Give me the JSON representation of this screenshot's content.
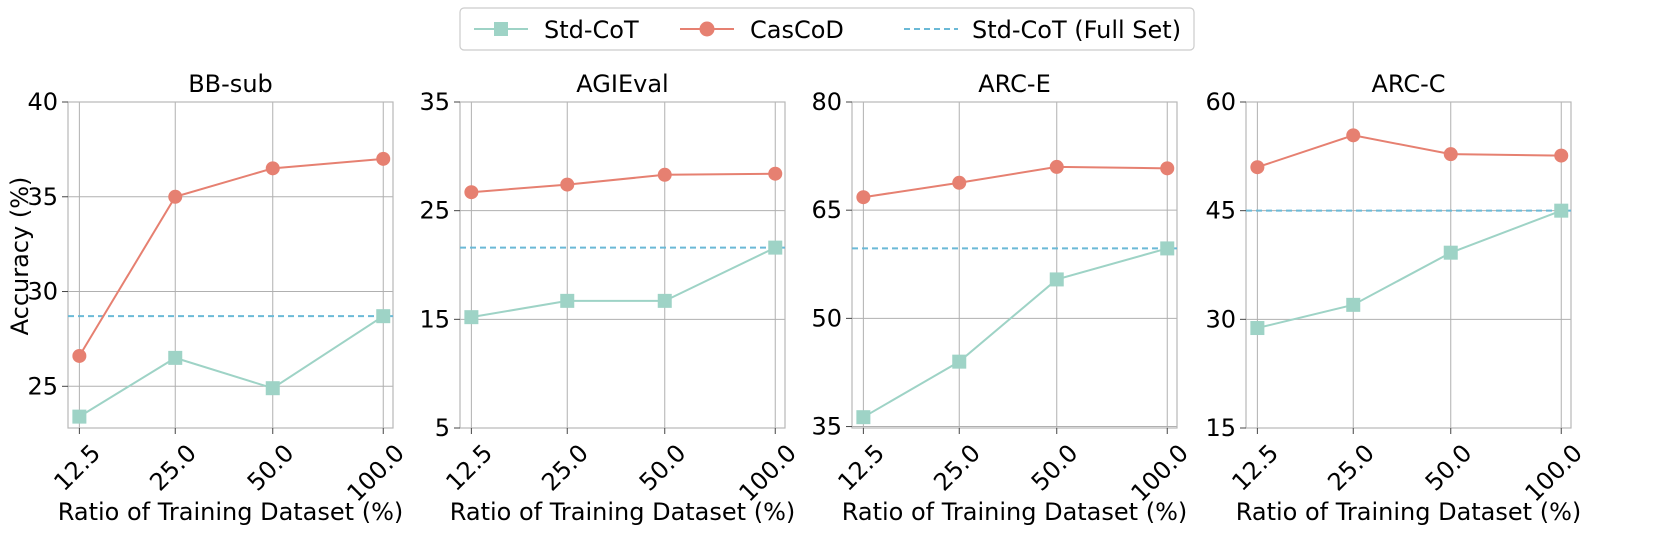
{
  "legend": {
    "items": [
      {
        "label": "Std-CoT",
        "color": "#9ed3c6",
        "marker": "square"
      },
      {
        "label": "CasCoD",
        "color": "#e68071",
        "marker": "circle"
      },
      {
        "label": "Std-CoT (Full Set)",
        "color": "#6bb9d6",
        "marker": "dashed-line"
      }
    ]
  },
  "shared": {
    "ylabel": "Accuracy (%)",
    "xlabel": "Ratio of Training Dataset (%)"
  },
  "chart_data": [
    {
      "type": "line",
      "title": "BB-sub",
      "categories": [
        "12.5",
        "25.0",
        "50.0",
        "100.0"
      ],
      "yticks": [
        25,
        30,
        35,
        40
      ],
      "ylim": [
        22.8,
        40
      ],
      "series": [
        {
          "name": "Std-CoT",
          "values": [
            23.4,
            26.5,
            24.9,
            28.7
          ]
        },
        {
          "name": "CasCoD",
          "values": [
            26.6,
            35.0,
            36.5,
            37.0
          ]
        }
      ],
      "reference": {
        "name": "Std-CoT (Full Set)",
        "value": 28.7
      }
    },
    {
      "type": "line",
      "title": "AGIEval",
      "categories": [
        "12.5",
        "25.0",
        "50.0",
        "100.0"
      ],
      "yticks": [
        5,
        15,
        25,
        35
      ],
      "ylim": [
        5,
        35
      ],
      "series": [
        {
          "name": "Std-CoT",
          "values": [
            15.2,
            16.7,
            16.7,
            21.6
          ]
        },
        {
          "name": "CasCoD",
          "values": [
            26.7,
            27.4,
            28.3,
            28.4
          ]
        }
      ],
      "reference": {
        "name": "Std-CoT (Full Set)",
        "value": 21.6
      }
    },
    {
      "type": "line",
      "title": "ARC-E",
      "categories": [
        "12.5",
        "25.0",
        "50.0",
        "100.0"
      ],
      "yticks": [
        35,
        50,
        65,
        80
      ],
      "ylim": [
        34.8,
        80
      ],
      "series": [
        {
          "name": "Std-CoT",
          "values": [
            36.3,
            44.0,
            55.4,
            59.7
          ]
        },
        {
          "name": "CasCoD",
          "values": [
            66.8,
            68.8,
            71.0,
            70.8
          ]
        }
      ],
      "reference": {
        "name": "Std-CoT (Full Set)",
        "value": 59.7
      }
    },
    {
      "type": "line",
      "title": "ARC-C",
      "categories": [
        "12.5",
        "25.0",
        "50.0",
        "100.0"
      ],
      "yticks": [
        15,
        30,
        45,
        60
      ],
      "ylim": [
        15,
        60
      ],
      "series": [
        {
          "name": "Std-CoT",
          "values": [
            28.8,
            32.0,
            39.2,
            45.0
          ]
        },
        {
          "name": "CasCoD",
          "values": [
            51.0,
            55.4,
            52.8,
            52.6
          ]
        }
      ],
      "reference": {
        "name": "Std-CoT (Full Set)",
        "value": 45.0
      }
    }
  ]
}
